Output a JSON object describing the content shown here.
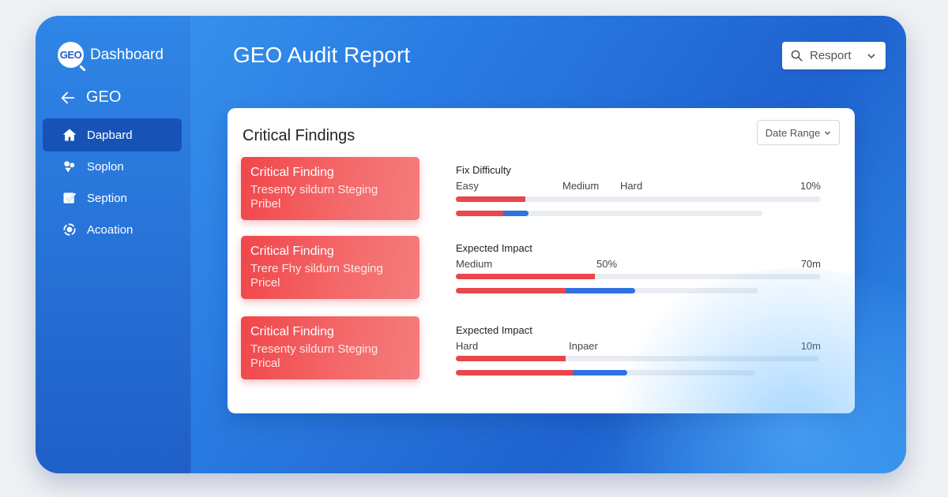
{
  "sidebar": {
    "brand_logo": "GEO",
    "brand_label": "Dashboard",
    "back_label": "GEO",
    "items": [
      {
        "label": "Dapbard",
        "icon": "home-icon",
        "active": true
      },
      {
        "label": "Soplon",
        "icon": "puzzle-icon",
        "active": false
      },
      {
        "label": "Seption",
        "icon": "checkbox-icon",
        "active": false
      },
      {
        "label": "Acoation",
        "icon": "target-icon",
        "active": false
      }
    ]
  },
  "header": {
    "title": "GEO Audit Report",
    "report_select": "Resport"
  },
  "card": {
    "title": "Critical Findings",
    "date_range": "Date Range",
    "findings": [
      {
        "title": "Critical Finding",
        "desc_line1": "Tresenty sildurn Steging",
        "desc_line2": "Pribel"
      },
      {
        "title": "Critical Finding",
        "desc_line1": "Trere Fhy sildurn Steging",
        "desc_line2": "Pricel"
      },
      {
        "title": "Critical Finding",
        "desc_line1": "Tresenty sildurn Steging",
        "desc_line2": "Prical"
      }
    ],
    "metrics": [
      {
        "title": "Fix Difficulty",
        "labels": {
          "a": "Easy",
          "b": "Medium",
          "c": "Hard",
          "end": "10%"
        },
        "bar1_red": 0.19,
        "bar2_red": 0.13,
        "bar2_blue": 0.07,
        "bar2_track": 0.84
      },
      {
        "title": "Expected Impact",
        "labels": {
          "a": "Medium",
          "b": "50%",
          "end": "70m"
        },
        "bar1_red": 0.38,
        "bar2_red": 0.3,
        "bar2_blue": 0.19,
        "bar2_track": 0.83
      },
      {
        "title": "Expected Impact",
        "labels": {
          "a": "Hard",
          "b": "Inpaer",
          "end": "10m"
        },
        "bar1_red": 0.3,
        "bar2_red": 0.32,
        "bar2_blue": 0.15,
        "bar2_track": 0.82
      }
    ]
  },
  "colors": {
    "accent_blue": "#2f72e0",
    "critical_red": "#e8474b",
    "track_gray": "#e9ecf1"
  }
}
